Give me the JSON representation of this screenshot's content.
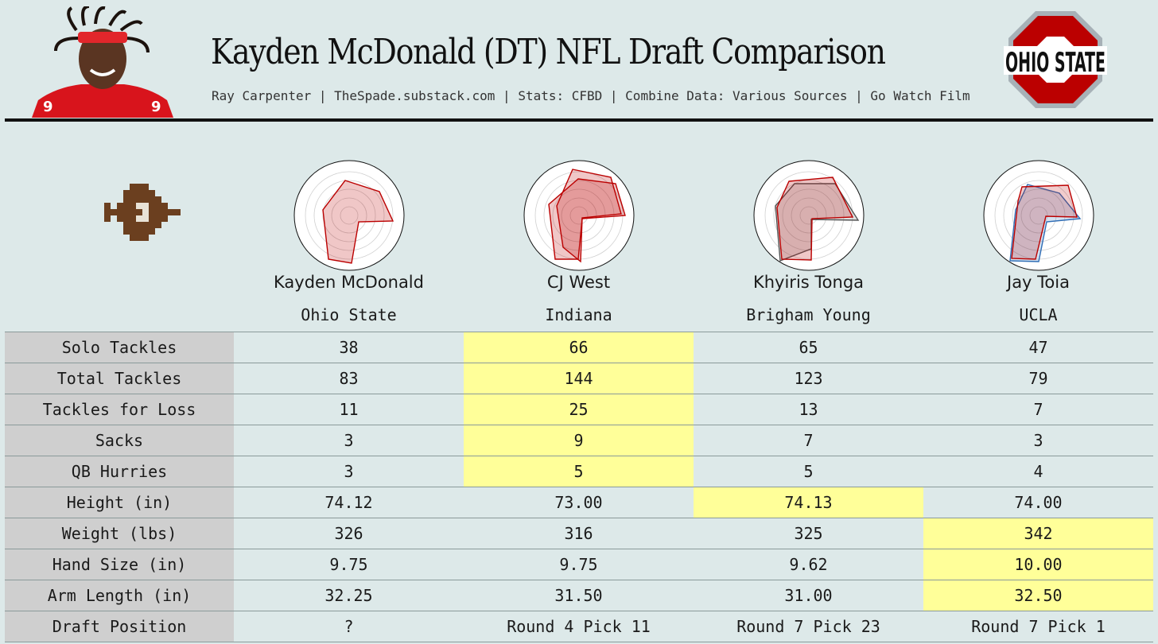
{
  "header": {
    "title": "Kayden McDonald (DT) NFL Draft Comparison",
    "subtitle": "Ray Carpenter | TheSpade.substack.com | Stats: CFBD | Combine Data: Various Sources | Go Watch Film",
    "logo_text": "OHIO STATE"
  },
  "colors": {
    "background": "#dde9e9",
    "highlight": "#ffff99",
    "label_bg": "#cfcfcf",
    "scarlet": "#bb0000",
    "gray": "#666666",
    "blue": "#2f6db5"
  },
  "players": [
    {
      "name": "Kayden McDonald",
      "school": "Ohio State"
    },
    {
      "name": "CJ West",
      "school": "Indiana"
    },
    {
      "name": "Khyiris Tonga",
      "school": "Brigham Young"
    },
    {
      "name": "Jay Toia",
      "school": "UCLA"
    }
  ],
  "rows": [
    {
      "label": "Solo Tackles",
      "values": [
        "38",
        "66",
        "65",
        "47"
      ],
      "highlight": 1
    },
    {
      "label": "Total Tackles",
      "values": [
        "83",
        "144",
        "123",
        "79"
      ],
      "highlight": 1
    },
    {
      "label": "Tackles for Loss",
      "values": [
        "11",
        "25",
        "13",
        "7"
      ],
      "highlight": 1
    },
    {
      "label": "Sacks",
      "values": [
        "3",
        "9",
        "7",
        "3"
      ],
      "highlight": 1
    },
    {
      "label": "QB Hurries",
      "values": [
        "3",
        "5",
        "5",
        "4"
      ],
      "highlight": 1
    },
    {
      "label": "Height (in)",
      "values": [
        "74.12",
        "73.00",
        "74.13",
        "74.00"
      ],
      "highlight": 2
    },
    {
      "label": "Weight (lbs)",
      "values": [
        "326",
        "316",
        "325",
        "342"
      ],
      "highlight": 3
    },
    {
      "label": "Hand Size (in)",
      "values": [
        "9.75",
        "9.75",
        "9.62",
        "10.00"
      ],
      "highlight": 3
    },
    {
      "label": "Arm Length (in)",
      "values": [
        "32.25",
        "31.50",
        "31.00",
        "32.50"
      ],
      "highlight": 3
    },
    {
      "label": "Draft Position",
      "values": [
        "?",
        "Round 4 Pick 11",
        "Round 7 Pick 23",
        "Round 7 Pick 1"
      ],
      "highlight": -1
    }
  ]
}
